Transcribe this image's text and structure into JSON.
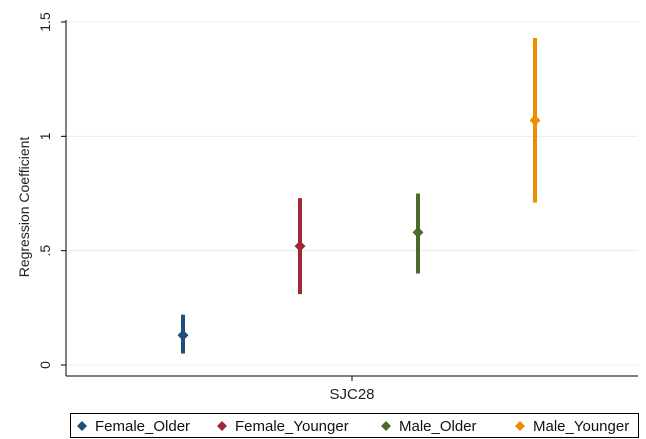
{
  "chart_data": {
    "type": "scatter",
    "subtype": "point-range",
    "ylabel": "Regression Coefficient",
    "xlabel": "",
    "category": "SJC28",
    "ylim": [
      0,
      1.5
    ],
    "yticks": [
      {
        "value": 0,
        "label": "0"
      },
      {
        "value": 0.5,
        "label": ".5"
      },
      {
        "value": 1,
        "label": "1"
      },
      {
        "value": 1.5,
        "label": "1.5"
      }
    ],
    "grid": "horizontal",
    "legend_position": "bottom",
    "series": [
      {
        "name": "Female_Older",
        "color": "#1f4e79",
        "estimate": 0.13,
        "lower": 0.05,
        "upper": 0.22
      },
      {
        "name": "Female_Younger",
        "color": "#9e2a35",
        "estimate": 0.52,
        "lower": 0.31,
        "upper": 0.73
      },
      {
        "name": "Male_Older",
        "color": "#4a6b2a",
        "estimate": 0.58,
        "lower": 0.4,
        "upper": 0.75
      },
      {
        "name": "Male_Younger",
        "color": "#f08c00",
        "estimate": 1.07,
        "lower": 0.71,
        "upper": 1.43
      }
    ]
  }
}
